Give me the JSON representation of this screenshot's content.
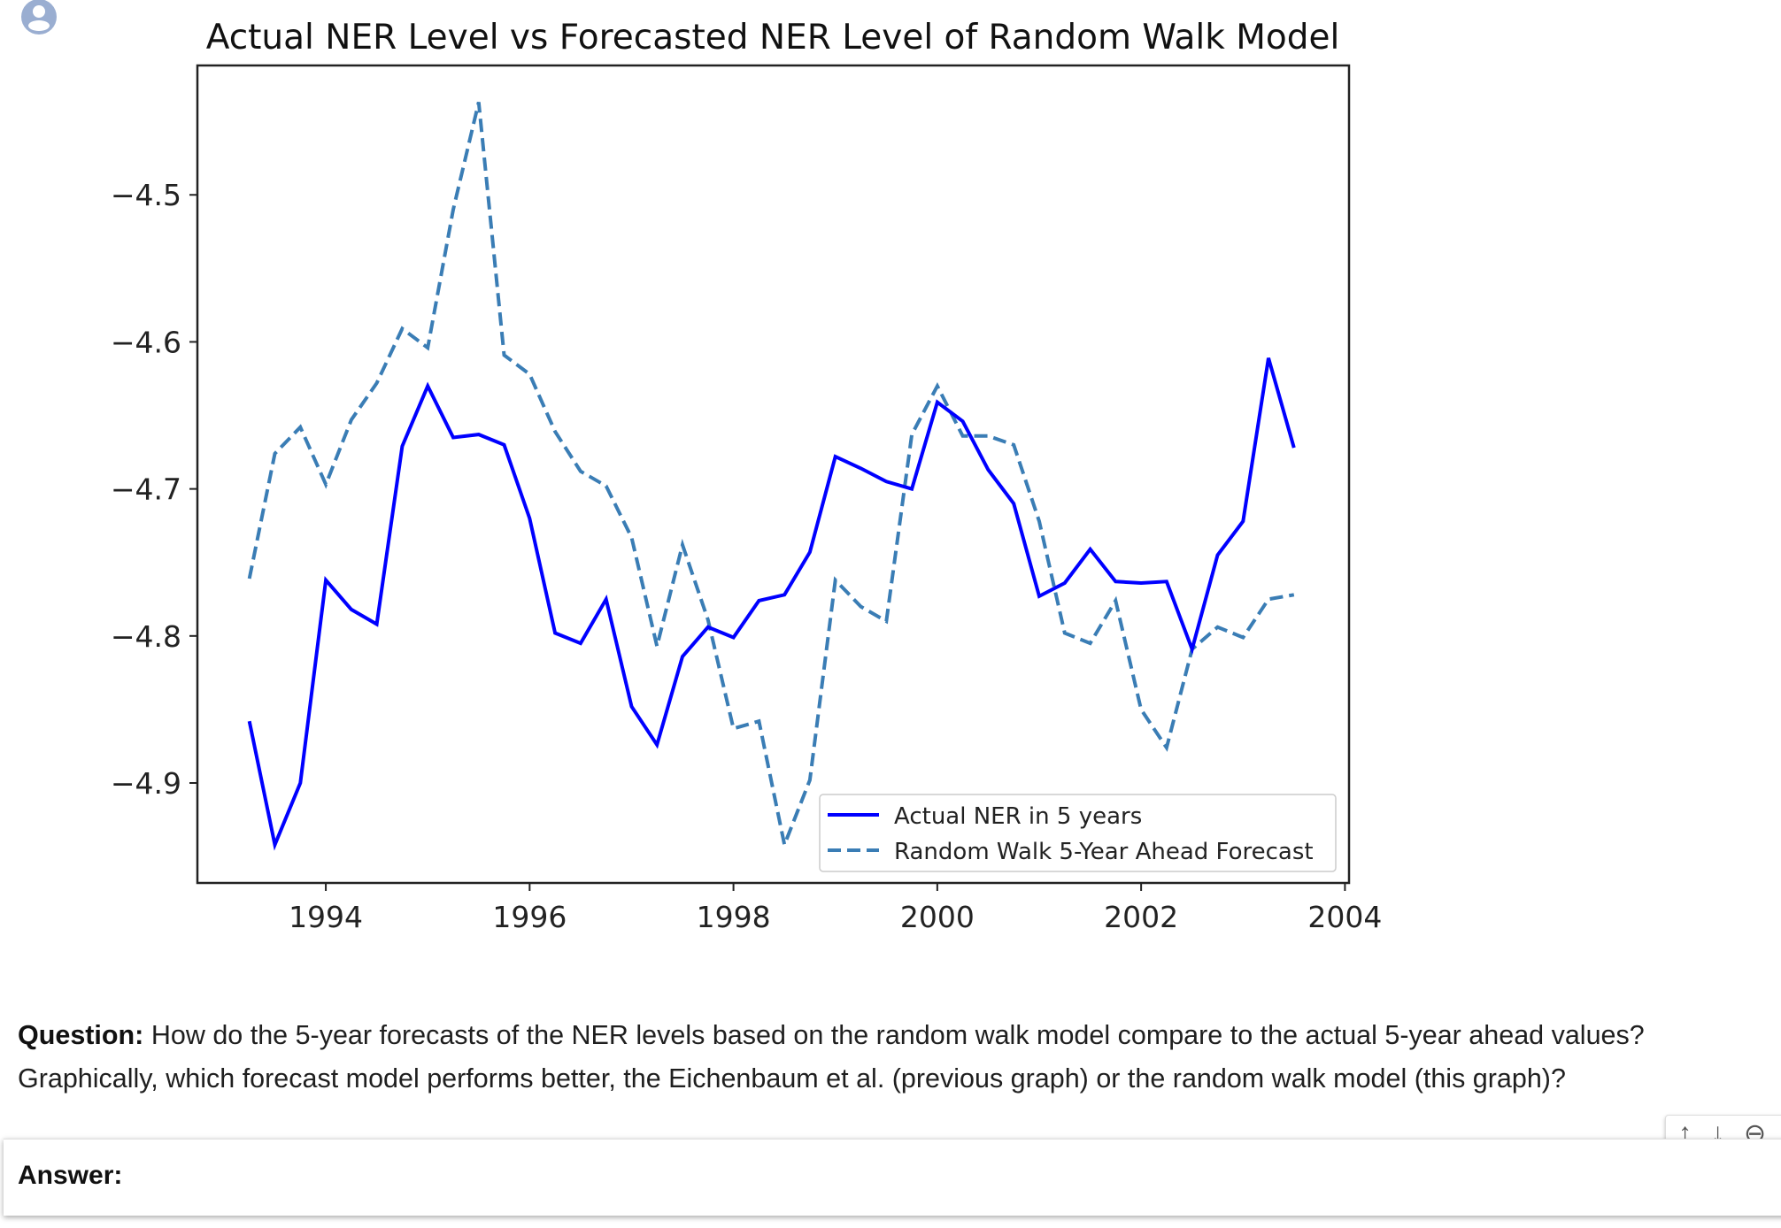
{
  "page": {
    "question_label": "Question:",
    "question_text": "How do the 5-year forecasts of the NER levels based on the random walk model compare to the actual 5-year ahead values? Graphically, which forecast model performs better, the Eichenbaum et al. (previous graph) or the random walk model (this graph)?",
    "answer_label": "Answer:",
    "toolbar": {
      "up_icon": "↑",
      "down_icon": "↓",
      "link_icon": "⊖"
    },
    "avatar_icon": "user-avatar-icon",
    "avatar_color": "#9aaed1"
  },
  "chart_data": {
    "type": "line",
    "title": "Actual NER Level vs Forecasted NER Level of Random Walk Model",
    "xlabel": "",
    "ylabel": "",
    "xlim": [
      1992.74,
      2004.04
    ],
    "ylim": [
      -4.968,
      -4.412
    ],
    "xticks": [
      1994,
      1996,
      1998,
      2000,
      2002,
      2004
    ],
    "xtick_labels": [
      "1994",
      "1996",
      "1998",
      "2000",
      "2002",
      "2004"
    ],
    "yticks": [
      -4.5,
      -4.6,
      -4.7,
      -4.8,
      -4.9
    ],
    "ytick_labels": [
      "−4.5",
      "−4.6",
      "−4.7",
      "−4.8",
      "−4.9"
    ],
    "grid": false,
    "legend_position": "lower right",
    "x": [
      1993.25,
      1993.5,
      1993.75,
      1994.0,
      1994.25,
      1994.5,
      1994.75,
      1995.0,
      1995.25,
      1995.5,
      1995.75,
      1996.0,
      1996.25,
      1996.5,
      1996.75,
      1997.0,
      1997.25,
      1997.5,
      1997.75,
      1998.0,
      1998.25,
      1998.5,
      1998.75,
      1999.0,
      1999.25,
      1999.5,
      1999.75,
      2000.0,
      2000.25,
      2000.5,
      2000.75,
      2001.0,
      2001.25,
      2001.5,
      2001.75,
      2002.0,
      2002.25,
      2002.5,
      2002.75,
      2003.0,
      2003.25,
      2003.5
    ],
    "series": [
      {
        "name": "Actual NER in 5 years",
        "color": "#0000ff",
        "style": "solid",
        "values": [
          -4.858,
          -4.942,
          -4.9,
          -4.762,
          -4.782,
          -4.792,
          -4.671,
          -4.63,
          -4.665,
          -4.663,
          -4.67,
          -4.72,
          -4.798,
          -4.805,
          -4.775,
          -4.848,
          -4.874,
          -4.814,
          -4.794,
          -4.801,
          -4.776,
          -4.772,
          -4.743,
          -4.678,
          -4.686,
          -4.695,
          -4.7,
          -4.641,
          -4.654,
          -4.687,
          -4.71,
          -4.773,
          -4.764,
          -4.741,
          -4.763,
          -4.764,
          -4.763,
          -4.809,
          -4.745,
          -4.722,
          -4.611,
          -4.672
        ]
      },
      {
        "name": "Random Walk 5-Year Ahead Forecast",
        "color": "#3a7db5",
        "style": "dashed",
        "values": [
          -4.761,
          -4.676,
          -4.658,
          -4.697,
          -4.653,
          -4.628,
          -4.591,
          -4.604,
          -4.51,
          -4.437,
          -4.609,
          -4.622,
          -4.661,
          -4.688,
          -4.698,
          -4.733,
          -4.807,
          -4.738,
          -4.789,
          -4.863,
          -4.858,
          -4.942,
          -4.898,
          -4.762,
          -4.78,
          -4.79,
          -4.663,
          -4.63,
          -4.664,
          -4.664,
          -4.67,
          -4.722,
          -4.798,
          -4.805,
          -4.776,
          -4.85,
          -4.876,
          -4.809,
          -4.794,
          -4.801,
          -4.775,
          -4.772
        ]
      }
    ]
  }
}
